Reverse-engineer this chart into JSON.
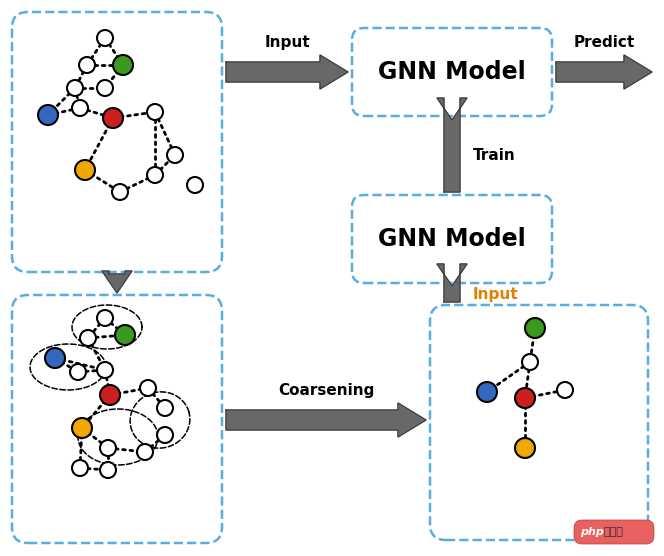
{
  "bg_color": "#ffffff",
  "blue_dash_color": "#5aade0",
  "node_white_fill": "#ffffff",
  "node_blue_fill": "#3468c0",
  "node_green_fill": "#3a9a20",
  "node_red_fill": "#cc2020",
  "node_yellow_fill": "#f0a800",
  "arrow_color": "#686868",
  "arrow_outline": "#404040",
  "gnn_box1_label": "GNN Model",
  "gnn_box2_label": "GNN Model",
  "label_input1": "Input",
  "label_predict": "Predict",
  "label_train": "Train",
  "label_coarsening": "Coarsening",
  "label_input2": "Input",
  "label_input2_color": "#e08000",
  "label_bold": true,
  "watermark_text": "php",
  "watermark_text2": " 中文网"
}
